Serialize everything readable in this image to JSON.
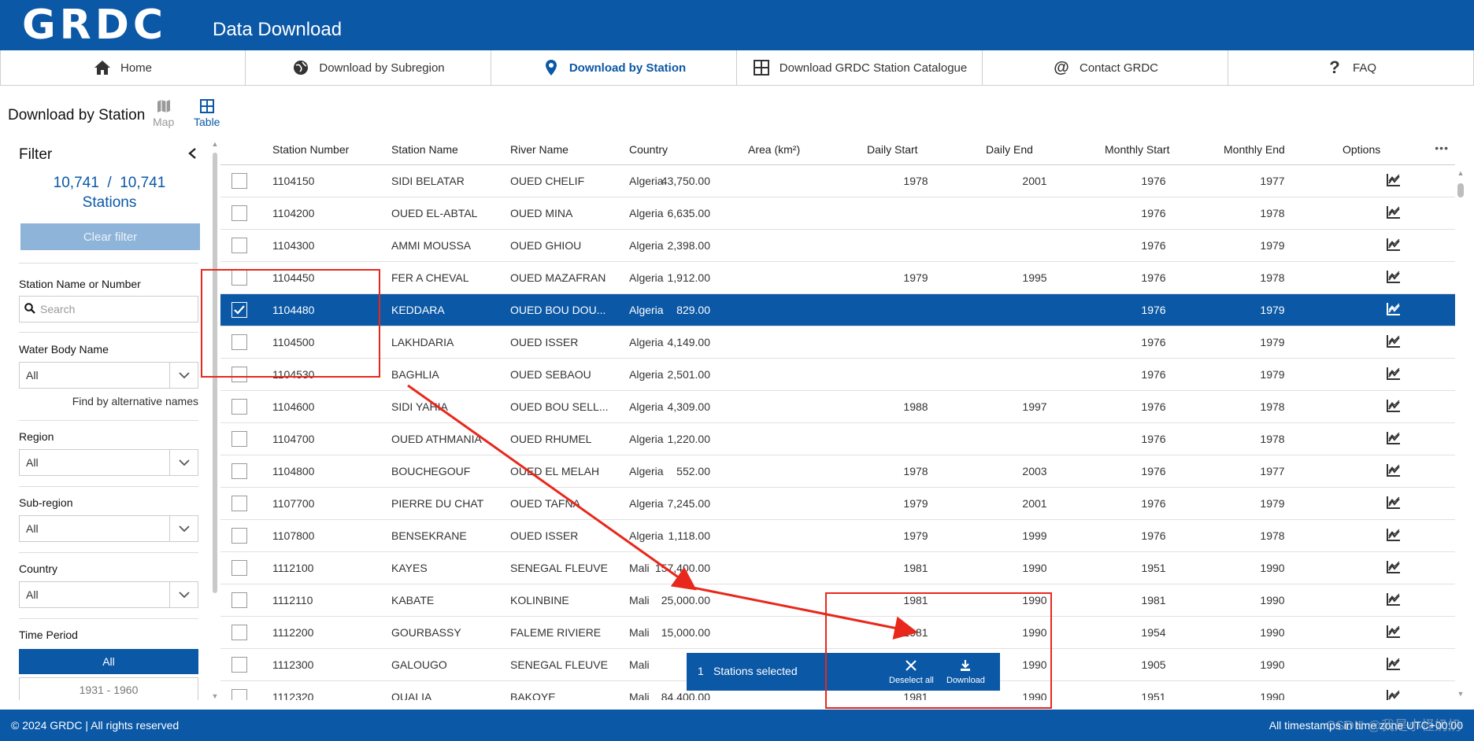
{
  "brand": {
    "logo": "GRDC",
    "app_title": "Data Download"
  },
  "nav": [
    {
      "label": "Home",
      "icon": "home-icon",
      "active": false
    },
    {
      "label": "Download by Subregion",
      "icon": "globe-icon",
      "active": false
    },
    {
      "label": "Download by Station",
      "icon": "location-pin-icon",
      "active": true
    },
    {
      "label": "Download GRDC Station Catalogue",
      "icon": "grid-icon",
      "active": false
    },
    {
      "label": "Contact GRDC",
      "icon": "at-icon",
      "active": false
    },
    {
      "label": "FAQ",
      "icon": "question-icon",
      "active": false
    }
  ],
  "page": {
    "heading": "Download by Station",
    "view_map": "Map",
    "view_table": "Table"
  },
  "filter": {
    "title": "Filter",
    "count_shown": "10,741",
    "count_sep": "/",
    "count_total": "10,741",
    "count_unit": "Stations",
    "clear_label": "Clear filter",
    "station_label": "Station Name or Number",
    "search_placeholder": "Search",
    "water_body_label": "Water Body Name",
    "water_body_value": "All",
    "alt_names_link": "Find by alternative names",
    "region_label": "Region",
    "region_value": "All",
    "subregion_label": "Sub-region",
    "subregion_value": "All",
    "country_label": "Country",
    "country_value": "All",
    "period_label": "Time Period",
    "period_all": "All",
    "period_1": "1931 - 1960"
  },
  "table": {
    "headers": {
      "station_number": "Station Number",
      "station_name": "Station Name",
      "river_name": "River Name",
      "country": "Country",
      "area": "Area (km²)",
      "daily_start": "Daily Start",
      "daily_end": "Daily End",
      "monthly_start": "Monthly Start",
      "monthly_end": "Monthly End",
      "options": "Options",
      "more": "•••"
    },
    "rows": [
      {
        "number": "1104150",
        "name": "SIDI BELATAR",
        "river": "OUED CHELIF",
        "country": "Algeria",
        "area": "43,750.00",
        "daily_start": "1978",
        "daily_end": "2001",
        "monthly_start": "1976",
        "monthly_end": "1977",
        "selected": false
      },
      {
        "number": "1104200",
        "name": "OUED EL-ABTAL",
        "river": "OUED MINA",
        "country": "Algeria",
        "area": "6,635.00",
        "daily_start": "",
        "daily_end": "",
        "monthly_start": "1976",
        "monthly_end": "1978",
        "selected": false
      },
      {
        "number": "1104300",
        "name": "AMMI MOUSSA",
        "river": "OUED GHIOU",
        "country": "Algeria",
        "area": "2,398.00",
        "daily_start": "",
        "daily_end": "",
        "monthly_start": "1976",
        "monthly_end": "1979",
        "selected": false
      },
      {
        "number": "1104450",
        "name": "FER A CHEVAL",
        "river": "OUED MAZAFRAN",
        "country": "Algeria",
        "area": "1,912.00",
        "daily_start": "1979",
        "daily_end": "1995",
        "monthly_start": "1976",
        "monthly_end": "1978",
        "selected": false
      },
      {
        "number": "1104480",
        "name": "KEDDARA",
        "river": "OUED BOU DOU...",
        "country": "Algeria",
        "area": "829.00",
        "daily_start": "",
        "daily_end": "",
        "monthly_start": "1976",
        "monthly_end": "1979",
        "selected": true
      },
      {
        "number": "1104500",
        "name": "LAKHDARIA",
        "river": "OUED ISSER",
        "country": "Algeria",
        "area": "4,149.00",
        "daily_start": "",
        "daily_end": "",
        "monthly_start": "1976",
        "monthly_end": "1979",
        "selected": false
      },
      {
        "number": "1104530",
        "name": "BAGHLIA",
        "river": "OUED SEBAOU",
        "country": "Algeria",
        "area": "2,501.00",
        "daily_start": "",
        "daily_end": "",
        "monthly_start": "1976",
        "monthly_end": "1979",
        "selected": false
      },
      {
        "number": "1104600",
        "name": "SIDI YAHIA",
        "river": "OUED BOU SELL...",
        "country": "Algeria",
        "area": "4,309.00",
        "daily_start": "1988",
        "daily_end": "1997",
        "monthly_start": "1976",
        "monthly_end": "1978",
        "selected": false
      },
      {
        "number": "1104700",
        "name": "OUED ATHMANIA",
        "river": "OUED RHUMEL",
        "country": "Algeria",
        "area": "1,220.00",
        "daily_start": "",
        "daily_end": "",
        "monthly_start": "1976",
        "monthly_end": "1978",
        "selected": false
      },
      {
        "number": "1104800",
        "name": "BOUCHEGOUF",
        "river": "OUED EL MELAH",
        "country": "Algeria",
        "area": "552.00",
        "daily_start": "1978",
        "daily_end": "2003",
        "monthly_start": "1976",
        "monthly_end": "1977",
        "selected": false
      },
      {
        "number": "1107700",
        "name": "PIERRE DU CHAT",
        "river": "OUED TAFNA",
        "country": "Algeria",
        "area": "7,245.00",
        "daily_start": "1979",
        "daily_end": "2001",
        "monthly_start": "1976",
        "monthly_end": "1979",
        "selected": false
      },
      {
        "number": "1107800",
        "name": "BENSEKRANE",
        "river": "OUED ISSER",
        "country": "Algeria",
        "area": "1,118.00",
        "daily_start": "1979",
        "daily_end": "1999",
        "monthly_start": "1976",
        "monthly_end": "1978",
        "selected": false
      },
      {
        "number": "1112100",
        "name": "KAYES",
        "river": "SENEGAL FLEUVE",
        "country": "Mali",
        "area": "157,400.00",
        "daily_start": "1981",
        "daily_end": "1990",
        "monthly_start": "1951",
        "monthly_end": "1990",
        "selected": false
      },
      {
        "number": "1112110",
        "name": "KABATE",
        "river": "KOLINBINE",
        "country": "Mali",
        "area": "25,000.00",
        "daily_start": "1981",
        "daily_end": "1990",
        "monthly_start": "1981",
        "monthly_end": "1990",
        "selected": false
      },
      {
        "number": "1112200",
        "name": "GOURBASSY",
        "river": "FALEME RIVIERE",
        "country": "Mali",
        "area": "15,000.00",
        "daily_start": "1981",
        "daily_end": "1990",
        "monthly_start": "1954",
        "monthly_end": "1990",
        "selected": false
      },
      {
        "number": "1112300",
        "name": "GALOUGO",
        "river": "SENEGAL FLEUVE",
        "country": "Mali",
        "area": "",
        "daily_start": "",
        "daily_end": "1990",
        "monthly_start": "1905",
        "monthly_end": "1990",
        "selected": false
      },
      {
        "number": "1112320",
        "name": "OUALIA",
        "river": "BAKOYE",
        "country": "Mali",
        "area": "84,400.00",
        "daily_start": "1981",
        "daily_end": "1990",
        "monthly_start": "1951",
        "monthly_end": "1990",
        "selected": false
      }
    ]
  },
  "selection_bar": {
    "count": "1",
    "label": "Stations selected",
    "deselect_label": "Deselect all",
    "download_label": "Download"
  },
  "footer": {
    "copyright": "© 2024 GRDC | All rights reserved",
    "timestamps": "All timestamps in time zone UTC+00:00"
  },
  "watermark": "CSDN @我是小怪奶奶",
  "colors": {
    "brand_blue": "#0b58a6",
    "annotation_red": "#e8281c",
    "clear_button": "#8fb4d9"
  }
}
